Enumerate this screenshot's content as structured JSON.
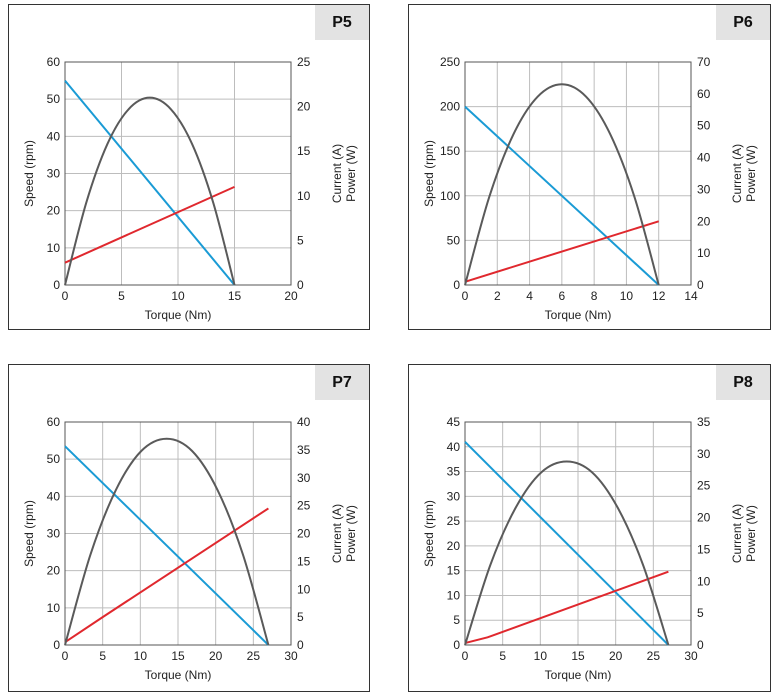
{
  "colors": {
    "speed": "#1a9bd5",
    "current": "#e0282e",
    "power": "#5a5a5a",
    "grid": "#bdbdbd"
  },
  "chart_data": [
    {
      "type": "line",
      "label": "P5",
      "xlabel": "Torque (Nm)",
      "ylabel": "Speed (rpm)",
      "y2label": [
        "Current (A)",
        "Power (W)"
      ],
      "xlim": [
        0,
        20
      ],
      "xticks": [
        0,
        5,
        10,
        15,
        20
      ],
      "ylim": [
        0,
        60
      ],
      "yticks": [
        0,
        10,
        20,
        30,
        40,
        50,
        60
      ],
      "y2lim": [
        0,
        25
      ],
      "y2ticks": [
        0,
        5,
        10,
        15,
        20,
        25
      ],
      "grid": true,
      "series": [
        {
          "key": "speed",
          "axis": "left",
          "x": [
            0,
            15
          ],
          "y": [
            55,
            0
          ]
        },
        {
          "key": "current",
          "axis": "right",
          "x": [
            0,
            15
          ],
          "y": [
            2.5,
            11
          ]
        },
        {
          "key": "power",
          "axis": "right",
          "x": [
            0,
            1.875,
            3.75,
            5.625,
            7.5,
            9.375,
            11.25,
            13.125,
            15
          ],
          "y": [
            0,
            9.2,
            15.8,
            19.7,
            21,
            19.7,
            15.8,
            9.2,
            0
          ]
        }
      ]
    },
    {
      "type": "line",
      "label": "P6",
      "xlabel": "Torque (Nm)",
      "ylabel": "Speed (rpm)",
      "y2label": [
        "Current (A)",
        "Power (W)"
      ],
      "xlim": [
        0,
        14
      ],
      "xticks": [
        0,
        2,
        4,
        6,
        8,
        10,
        12,
        14
      ],
      "ylim": [
        0,
        250
      ],
      "yticks": [
        0,
        50,
        100,
        150,
        200,
        250
      ],
      "y2lim": [
        0,
        70
      ],
      "y2ticks": [
        0,
        10,
        20,
        30,
        40,
        50,
        60,
        70
      ],
      "grid": true,
      "series": [
        {
          "key": "speed",
          "axis": "left",
          "x": [
            0,
            12
          ],
          "y": [
            200,
            0
          ]
        },
        {
          "key": "current",
          "axis": "right",
          "x": [
            0,
            12
          ],
          "y": [
            1,
            20
          ]
        },
        {
          "key": "power",
          "axis": "right",
          "x": [
            0,
            1.5,
            3,
            4.5,
            6,
            7.5,
            9,
            10.5,
            12
          ],
          "y": [
            0,
            27.6,
            47.3,
            59.1,
            63,
            59.1,
            47.3,
            27.6,
            0
          ]
        }
      ]
    },
    {
      "type": "line",
      "label": "P7",
      "xlabel": "Torque (Nm)",
      "ylabel": "Speed (rpm)",
      "y2label": [
        "Current (A)",
        "Power (W)"
      ],
      "xlim": [
        0,
        30
      ],
      "xticks": [
        0,
        5,
        10,
        15,
        20,
        25,
        30
      ],
      "ylim": [
        0,
        60
      ],
      "yticks": [
        0,
        10,
        20,
        30,
        40,
        50,
        60
      ],
      "y2lim": [
        0,
        40
      ],
      "y2ticks": [
        0,
        5,
        10,
        15,
        20,
        25,
        30,
        35,
        40
      ],
      "grid": true,
      "series": [
        {
          "key": "speed",
          "axis": "left",
          "x": [
            0,
            27
          ],
          "y": [
            53.5,
            0
          ]
        },
        {
          "key": "current",
          "axis": "right",
          "x": [
            0,
            5,
            27
          ],
          "y": [
            0.5,
            5,
            24.5
          ]
        },
        {
          "key": "power",
          "axis": "right",
          "x": [
            0,
            3.375,
            6.75,
            10.125,
            13.5,
            16.875,
            20.25,
            23.625,
            27
          ],
          "y": [
            0,
            16.2,
            27.8,
            34.8,
            37,
            34.8,
            27.8,
            16.2,
            0
          ]
        }
      ]
    },
    {
      "type": "line",
      "label": "P8",
      "xlabel": "Torque (Nm)",
      "ylabel": "Speed (rpm)",
      "y2label": [
        "Current (A)",
        "Power (W)"
      ],
      "xlim": [
        0,
        30
      ],
      "xticks": [
        0,
        5,
        10,
        15,
        20,
        25,
        30
      ],
      "ylim": [
        0,
        45
      ],
      "yticks": [
        0,
        5,
        10,
        15,
        20,
        25,
        30,
        35,
        40,
        45
      ],
      "y2lim": [
        0,
        35
      ],
      "y2ticks": [
        0,
        5,
        10,
        15,
        20,
        25,
        30,
        35
      ],
      "grid": true,
      "series": [
        {
          "key": "speed",
          "axis": "left",
          "x": [
            0,
            27
          ],
          "y": [
            41,
            0
          ]
        },
        {
          "key": "current",
          "axis": "right",
          "x": [
            0,
            3,
            27
          ],
          "y": [
            0.3,
            1.2,
            11.5
          ]
        },
        {
          "key": "power",
          "axis": "right",
          "x": [
            0,
            3.375,
            6.75,
            10.125,
            13.5,
            16.875,
            20.25,
            23.625,
            27
          ],
          "y": [
            0,
            12.6,
            21.6,
            27.1,
            28.8,
            27.1,
            21.6,
            12.6,
            0
          ]
        }
      ]
    }
  ]
}
